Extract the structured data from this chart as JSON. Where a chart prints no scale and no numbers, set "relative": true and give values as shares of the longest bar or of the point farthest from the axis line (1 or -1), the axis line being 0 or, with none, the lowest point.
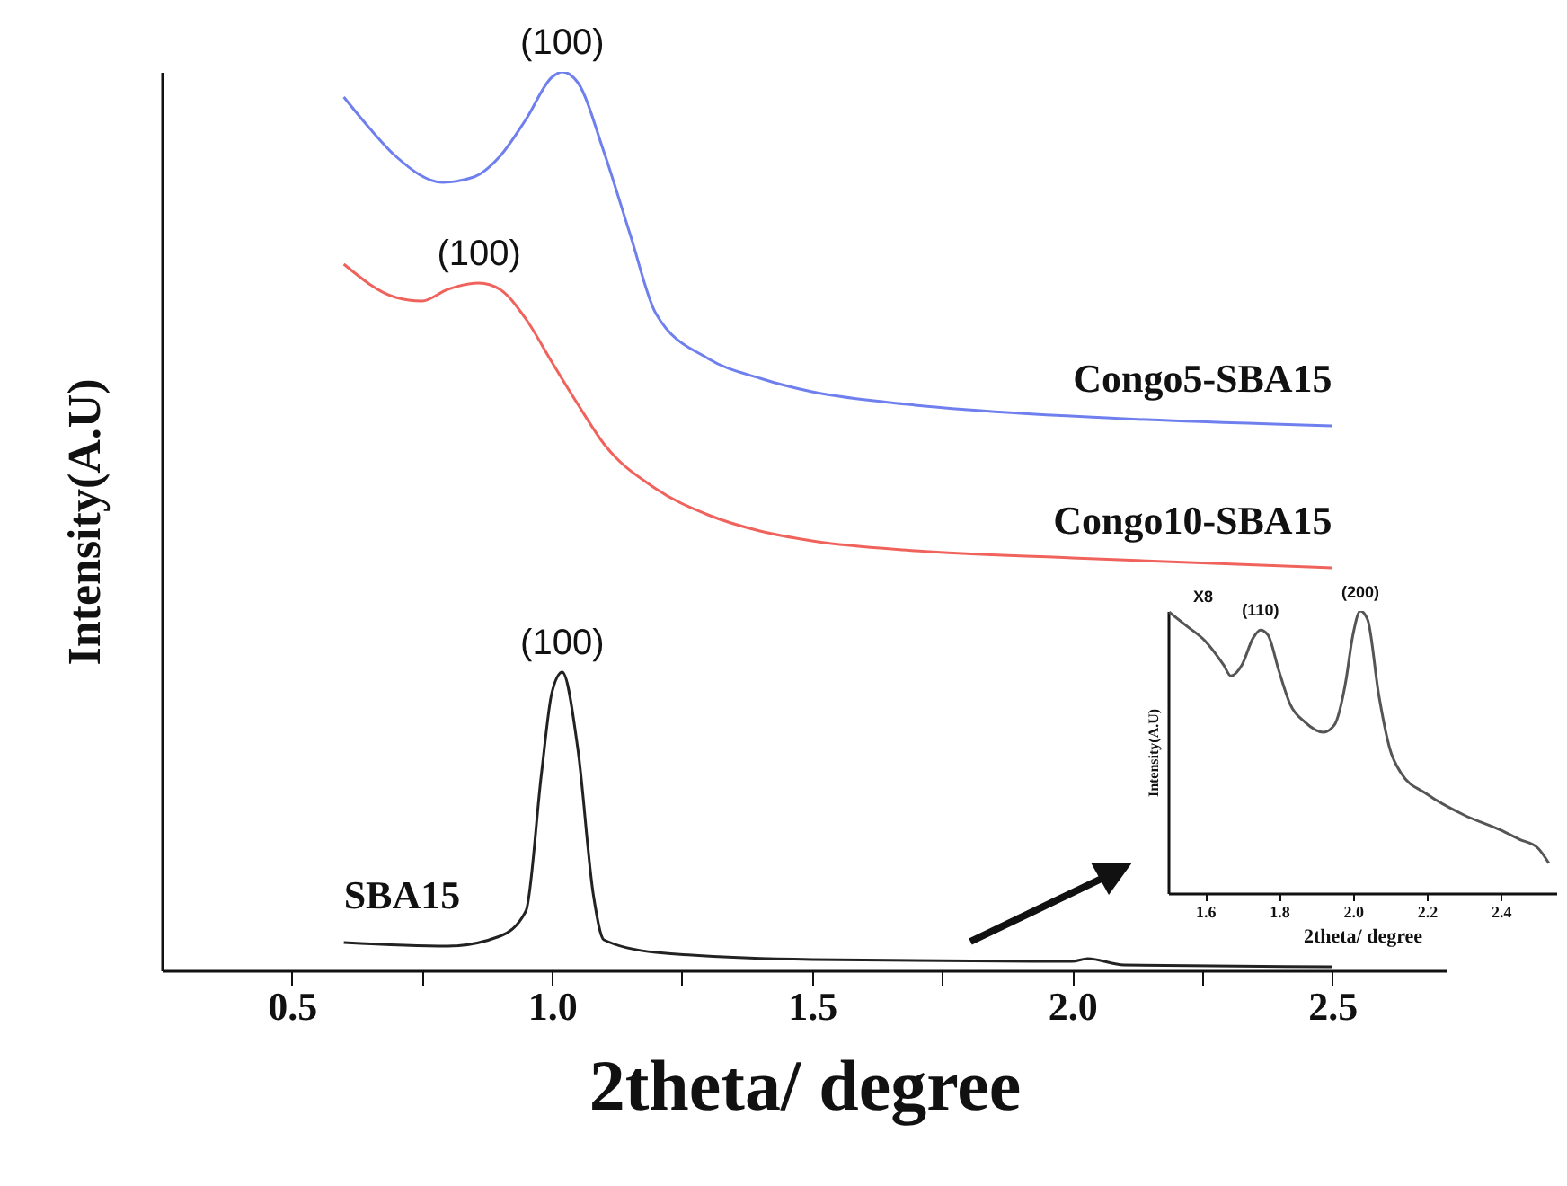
{
  "chart_data": [
    {
      "type": "line",
      "relative": true,
      "xlabel": "2theta/ degree",
      "ylabel": "Intensity(A.U)",
      "xlim": [
        0.25,
        2.72
      ],
      "xticks": [
        0.5,
        {
          "value": 0.75,
          "label": null
        },
        {
          "value": 1,
          "label": "1.0"
        },
        {
          "value": 1.25,
          "label": null
        },
        1.5,
        {
          "value": 1.75,
          "label": null
        },
        {
          "value": 2,
          "label": "2.0"
        },
        {
          "value": 2.25,
          "label": null
        },
        2.5
      ],
      "series": [
        {
          "name": "Congo5-SBA15",
          "color": "#6f80ee",
          "x": [
            0.6,
            0.65,
            0.7,
            0.79,
            0.85,
            0.9,
            0.95,
            1.0,
            1.02,
            1.05,
            1.1,
            1.15,
            1.2,
            1.3,
            1.4,
            1.5,
            1.65,
            1.8,
            2.1,
            2.5
          ],
          "values": [
            0.972,
            0.937,
            0.906,
            0.877,
            0.883,
            0.906,
            0.947,
            0.994,
            1.0,
            0.988,
            0.911,
            0.82,
            0.731,
            0.681,
            0.659,
            0.644,
            0.632,
            0.624,
            0.614,
            0.606
          ]
        },
        {
          "name": "Congo10-SBA15",
          "color": "#f0635c",
          "x": [
            0.6,
            0.7,
            0.75,
            0.8,
            0.86,
            0.9,
            0.95,
            1.0,
            1.05,
            1.1,
            1.2,
            1.3,
            1.4,
            1.5,
            1.7,
            2.0,
            2.5
          ],
          "values": [
            0.786,
            0.749,
            0.745,
            0.758,
            0.765,
            0.758,
            0.725,
            0.677,
            0.63,
            0.586,
            0.536,
            0.507,
            0.489,
            0.478,
            0.467,
            0.459,
            0.448
          ]
        },
        {
          "name": "SBA15",
          "color": "#222222",
          "x": [
            0.6,
            0.8,
            0.9,
            0.95,
            0.98,
            1.0,
            1.02,
            1.05,
            1.08,
            1.1,
            1.2,
            1.5,
            2.0,
            2.03,
            2.1,
            2.5
          ],
          "values": [
            0.031,
            0.027,
            0.038,
            0.066,
            0.219,
            0.309,
            0.332,
            0.246,
            0.083,
            0.034,
            0.02,
            0.012,
            0.01,
            0.013,
            0.006,
            0.004
          ]
        }
      ],
      "annotations": [
        {
          "text": "(100)",
          "x": 1.02,
          "y": 1.0
        },
        {
          "text": "(100)",
          "x": 0.86,
          "y": 0.765
        },
        {
          "text": "(100)",
          "x": 1.02,
          "y": 0.332
        }
      ]
    },
    {
      "type": "line",
      "relative": true,
      "xlabel": "2theta/ degree",
      "ylabel": "Intensity(A.U)",
      "xlim": [
        1.5,
        2.55
      ],
      "xticks": [
        1.6,
        1.8,
        {
          "value": 2,
          "label": "2.0"
        },
        2.2,
        2.4
      ],
      "series": [
        {
          "color": "#555555",
          "x": [
            1.503,
            1.55,
            1.6,
            1.65,
            1.67,
            1.7,
            1.73,
            1.75,
            1.77,
            1.8,
            1.83,
            1.87,
            1.92,
            1.95,
            1.98,
            2.0,
            2.02,
            2.04,
            2.07,
            2.1,
            2.13,
            2.2,
            2.3,
            2.4,
            2.45,
            2.5,
            2.53
          ],
          "values": [
            0.996,
            0.947,
            0.894,
            0.809,
            0.77,
            0.809,
            0.904,
            0.932,
            0.915,
            0.787,
            0.67,
            0.606,
            0.57,
            0.596,
            0.745,
            0.915,
            1.0,
            0.968,
            0.702,
            0.511,
            0.426,
            0.351,
            0.277,
            0.223,
            0.191,
            0.16,
            0.106
          ]
        }
      ],
      "annotations": [
        "X8",
        {
          "text": "(110)",
          "x": 1.75,
          "y": 0.932
        },
        {
          "text": "(200)",
          "x": 2.02,
          "y": 0.996
        }
      ]
    }
  ]
}
